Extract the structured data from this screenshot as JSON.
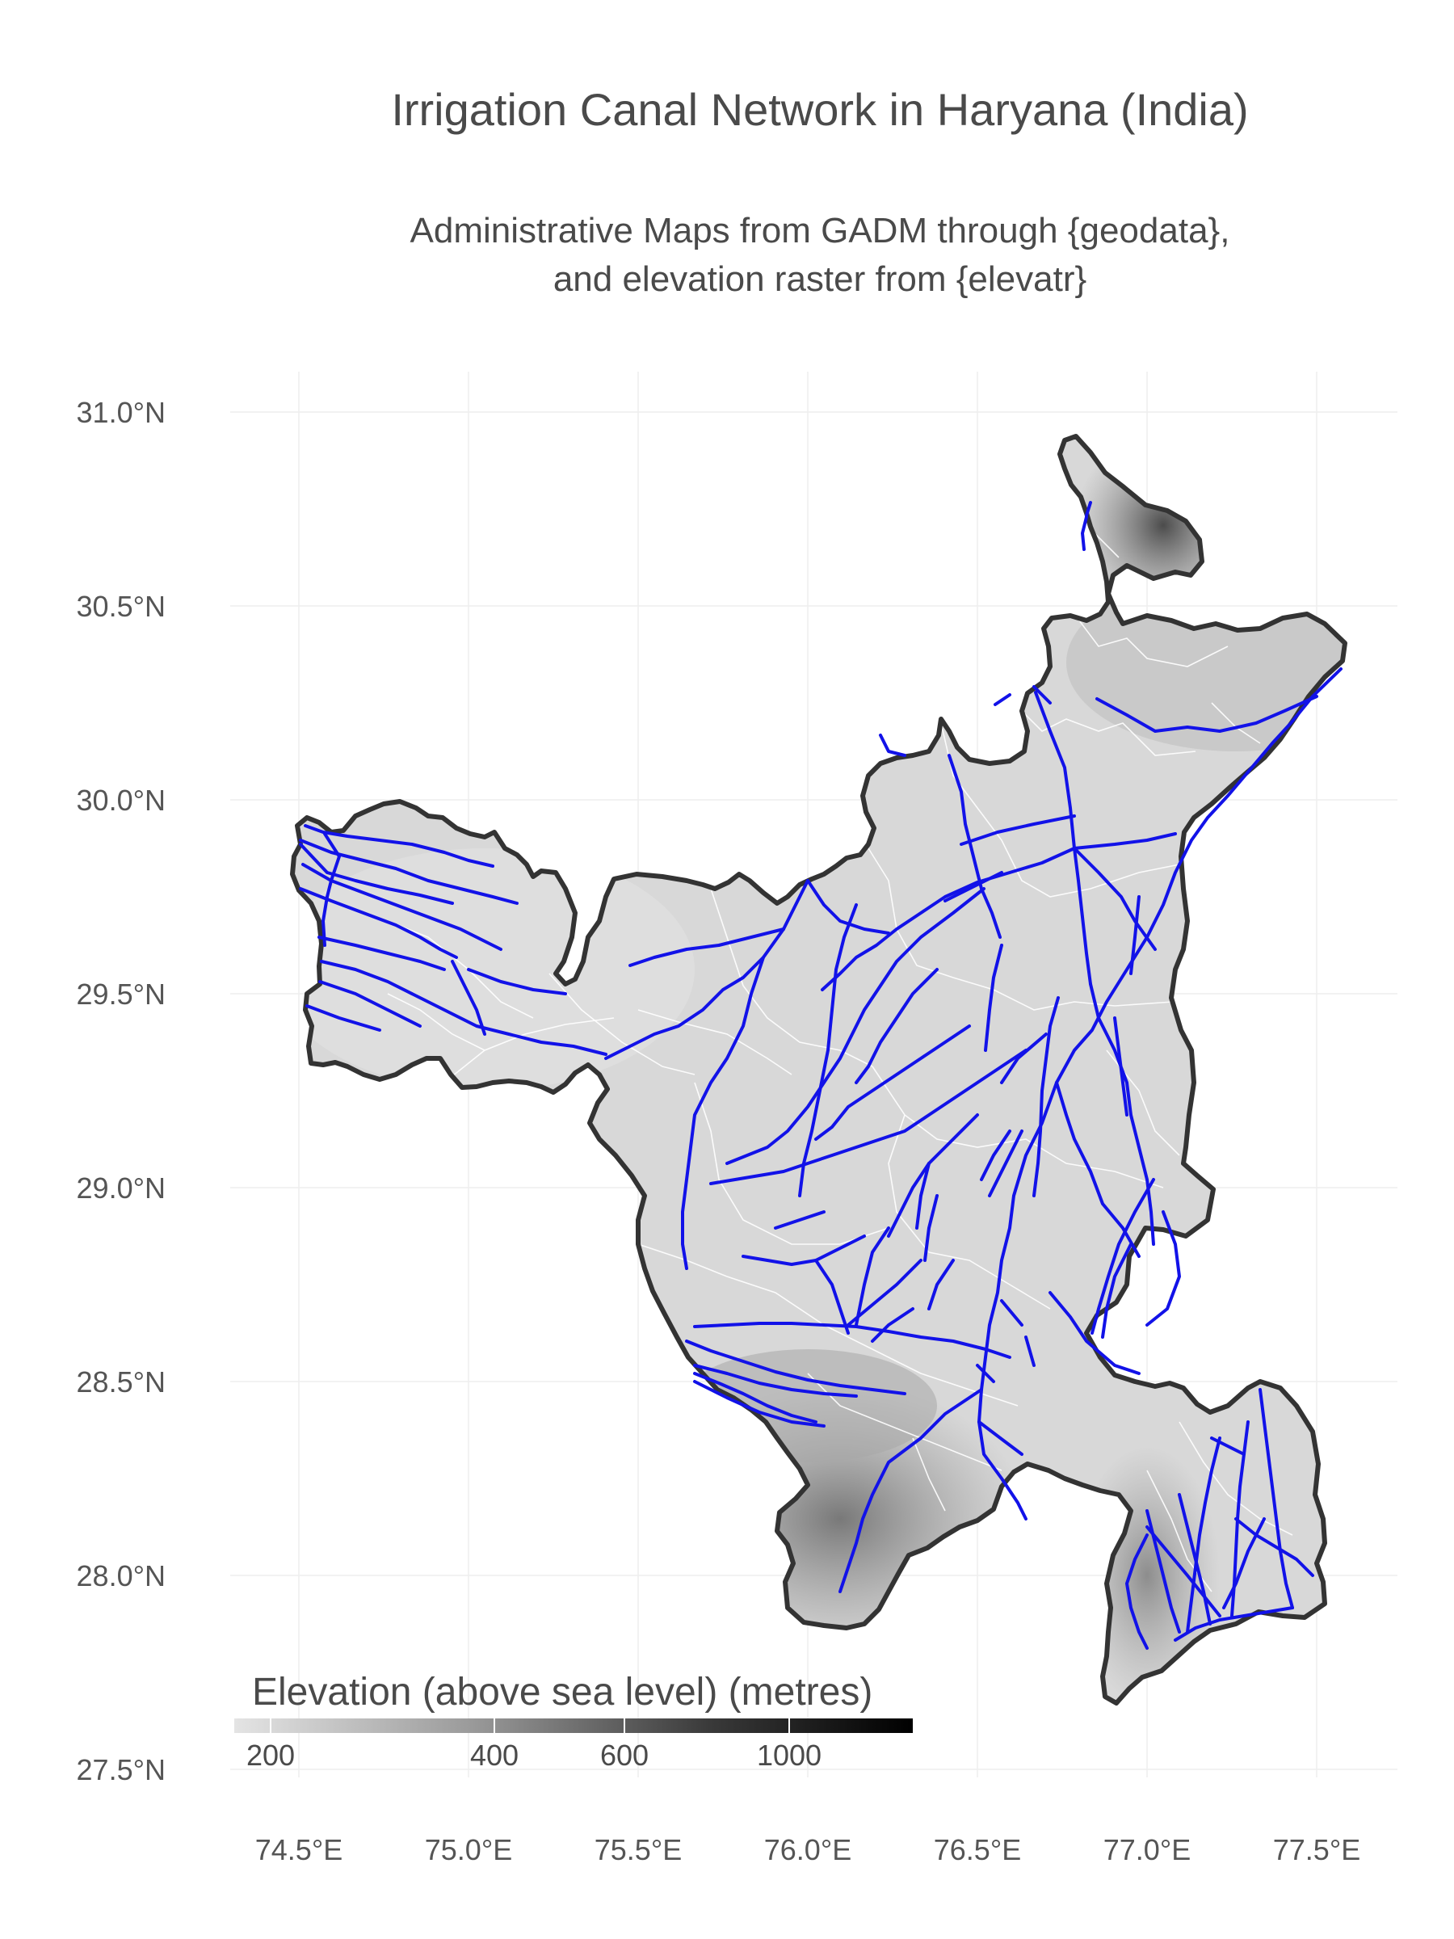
{
  "title": "Irrigation Canal Network in Haryana (India)",
  "subtitle_lines": [
    "Administrative Maps from GADM through {geodata},",
    "and elevation raster from {elevatr}"
  ],
  "axes": {
    "lat_ticks": [
      "31.0°N",
      "30.5°N",
      "30.0°N",
      "29.5°N",
      "29.0°N",
      "28.5°N",
      "28.0°N",
      "27.5°N"
    ],
    "lon_ticks": [
      "74.5°E",
      "75.0°E",
      "75.5°E",
      "76.0°E",
      "76.5°E",
      "77.0°E",
      "77.5°E"
    ]
  },
  "legend": {
    "title": "Elevation (above sea level) (metres)",
    "tick_labels": [
      "200",
      "400",
      "600",
      "1000"
    ],
    "scale_low_color": "#e4e4e4",
    "scale_high_color": "#000000"
  },
  "colors": {
    "canal": "#1212e8",
    "state_outline": "#333333",
    "district_border": "#ffffff"
  }
}
